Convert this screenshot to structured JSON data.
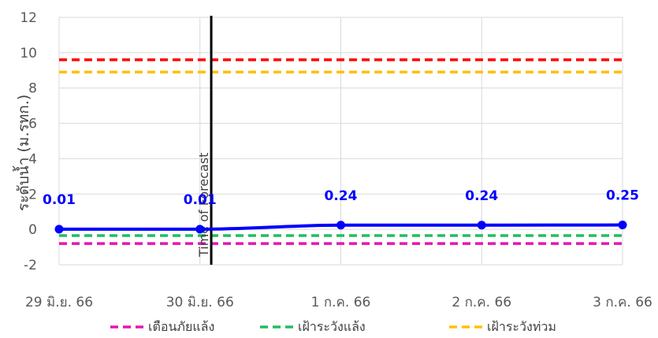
{
  "chart_data": {
    "type": "line",
    "title": "",
    "xlabel": "",
    "ylabel": "ระดับน้ำ (ม.รทก.)",
    "ylim": [
      -2,
      12
    ],
    "yticks": [
      -2,
      0,
      2,
      4,
      6,
      8,
      10,
      12
    ],
    "categories": [
      "29 มิ.ย. 66",
      "30 มิ.ย. 66",
      "1 ก.ค. 66",
      "2 ก.ค. 66",
      "3 ก.ค. 66"
    ],
    "grid": true,
    "legend_position": "bottom",
    "series": [
      {
        "name": "",
        "color": "#0000ff",
        "values": [
          0.01,
          0.01,
          0.24,
          0.24,
          0.25
        ],
        "labels": [
          "0.01",
          "0.01",
          "0.24",
          "0.24",
          "0.25"
        ]
      }
    ],
    "threshold_lines": [
      {
        "name": "เตือนภัยแล้ง",
        "value": -0.8,
        "color": "#e614b4"
      },
      {
        "name": "เฝ้าระวังแล้ง",
        "value": -0.35,
        "color": "#1fbf5f"
      },
      {
        "name": "เฝ้าระวังท่วม",
        "value": 8.9,
        "color": "#ffc000"
      },
      {
        "name": "",
        "value": 9.6,
        "color": "#ff0000"
      }
    ],
    "vertical_marker": {
      "label": "Time of Forecast",
      "x": 1.08,
      "color": "#000000"
    }
  }
}
